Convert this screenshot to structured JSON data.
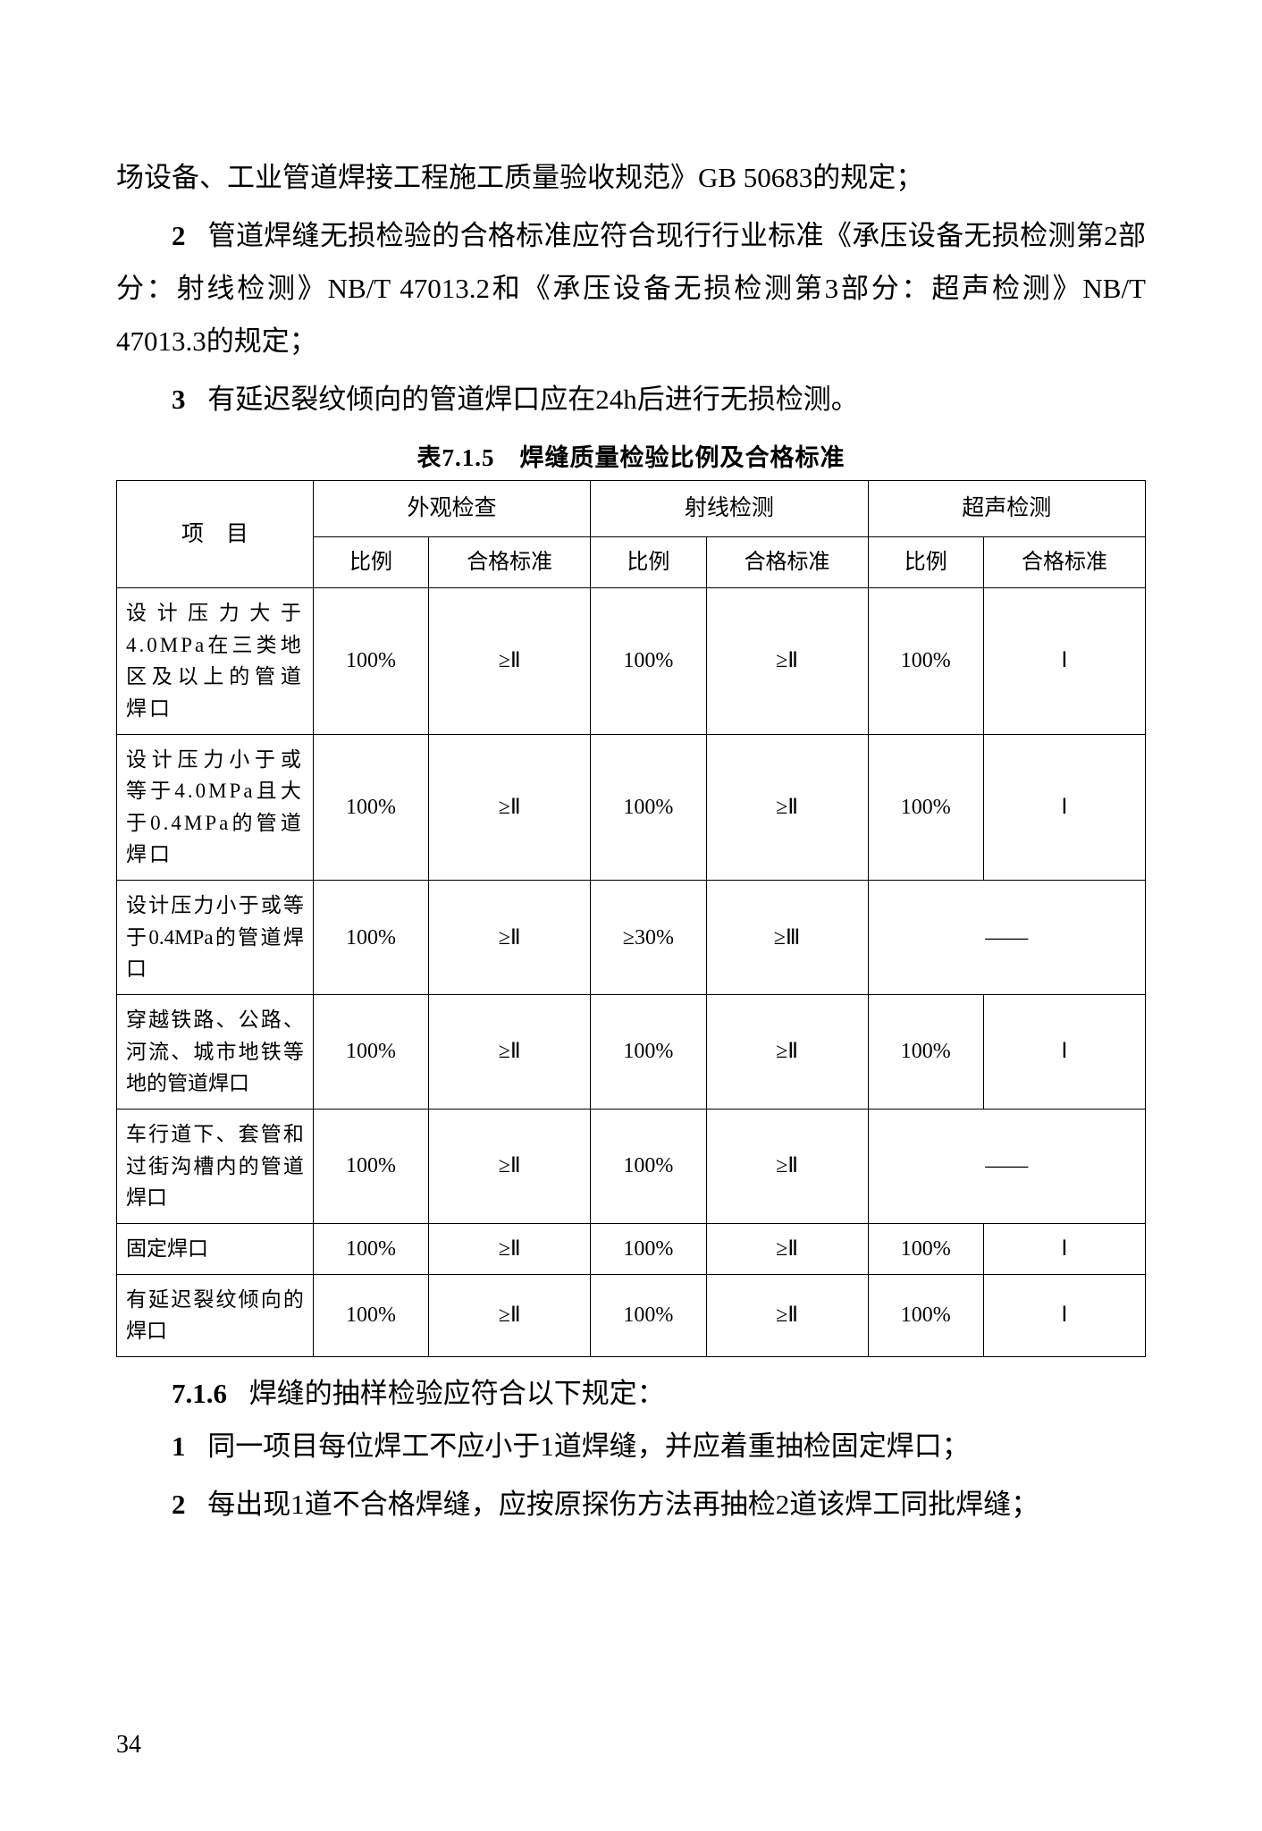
{
  "para1": "场设备、工业管道焊接工程施工质量验收规范》GB 50683的规定；",
  "item2_num": "2",
  "item2_text": "管道焊缝无损检验的合格标准应符合现行行业标准《承压设备无损检测第2部分：射线检测》NB/T 47013.2和《承压设备无损检测第3部分：超声检测》NB/T 47013.3的规定；",
  "item3_num": "3",
  "item3_text": "有延迟裂纹倾向的管道焊口应在24h后进行无损检测。",
  "table_caption": "表7.1.5　焊缝质量检验比例及合格标准",
  "table": {
    "header_item": "项　目",
    "header_groups": [
      "外观检查",
      "射线检测",
      "超声检测"
    ],
    "sub_headers": [
      "比例",
      "合格标准",
      "比例",
      "合格标准",
      "比例",
      "合格标准"
    ],
    "rows": [
      {
        "label": "设计压力大于4.0MPa在三类地区及以上的管道焊口",
        "cells": [
          "100%",
          "≥Ⅱ",
          "100%",
          "≥Ⅱ",
          "100%",
          "Ⅰ"
        ]
      },
      {
        "label": "设计压力小于或等于4.0MPa且大于0.4MPa的管道焊口",
        "cells": [
          "100%",
          "≥Ⅱ",
          "100%",
          "≥Ⅱ",
          "100%",
          "Ⅰ"
        ]
      },
      {
        "label": "设计压力小于或等于0.4MPa的管道焊口",
        "cells": [
          "100%",
          "≥Ⅱ",
          "≥30%",
          "≥Ⅲ",
          "——"
        ],
        "merge_last": true
      },
      {
        "label": "穿越铁路、公路、河流、城市地铁等地的管道焊口",
        "cells": [
          "100%",
          "≥Ⅱ",
          "100%",
          "≥Ⅱ",
          "100%",
          "Ⅰ"
        ]
      },
      {
        "label": "车行道下、套管和过街沟槽内的管道焊口",
        "cells": [
          "100%",
          "≥Ⅱ",
          "100%",
          "≥Ⅱ",
          "——"
        ],
        "merge_last": true
      },
      {
        "label": "固定焊口",
        "cells": [
          "100%",
          "≥Ⅱ",
          "100%",
          "≥Ⅱ",
          "100%",
          "Ⅰ"
        ]
      },
      {
        "label": "有延迟裂纹倾向的焊口",
        "cells": [
          "100%",
          "≥Ⅱ",
          "100%",
          "≥Ⅱ",
          "100%",
          "Ⅰ"
        ]
      }
    ]
  },
  "sec716_num": "7.1.6",
  "sec716_text": "焊缝的抽样检验应符合以下规定：",
  "sec716_item1_num": "1",
  "sec716_item1_text": "同一项目每位焊工不应小于1道焊缝，并应着重抽检固定焊口；",
  "sec716_item2_num": "2",
  "sec716_item2_text": "每出现1道不合格焊缝，应按原探伤方法再抽检2道该焊工同批焊缝；",
  "page_number": "34"
}
